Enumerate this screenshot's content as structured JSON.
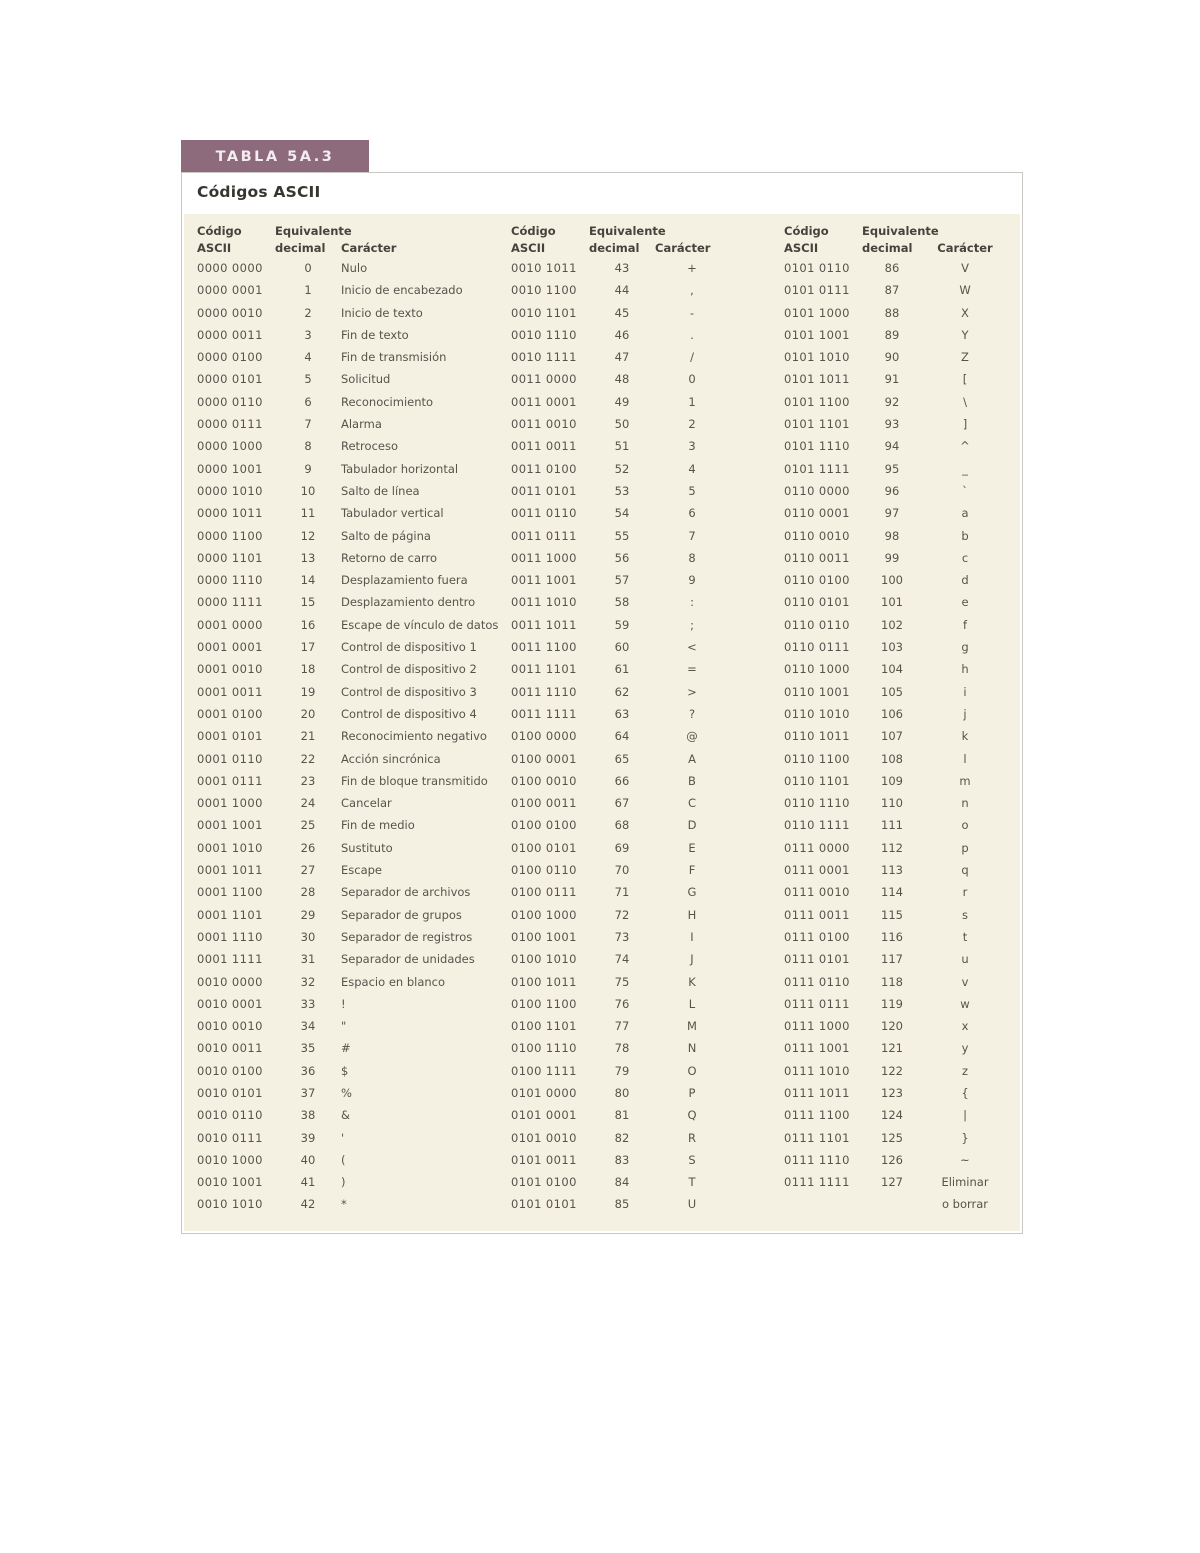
{
  "tab": {
    "label": "TABLA 5A.3"
  },
  "title": "Códigos ASCII",
  "colors": {
    "tab_bg": "#8d6a7c",
    "tab_text": "#f3edf0",
    "table_bg": "#f5f1e2",
    "panel_border": "#c9c7c2",
    "text": "#56534c"
  },
  "columns": {
    "code_line1": "Código",
    "code_line2": "ASCII",
    "dec_line1": "Equivalente",
    "dec_line2": "decimal",
    "char_label": "Carácter"
  },
  "groups": [
    {
      "rows": [
        [
          "0000 0000",
          "0",
          "Nulo"
        ],
        [
          "0000 0001",
          "1",
          "Inicio de encabezado"
        ],
        [
          "0000 0010",
          "2",
          "Inicio de texto"
        ],
        [
          "0000 0011",
          "3",
          "Fin de texto"
        ],
        [
          "0000 0100",
          "4",
          "Fin de transmisión"
        ],
        [
          "0000 0101",
          "5",
          "Solicitud"
        ],
        [
          "0000 0110",
          "6",
          "Reconocimiento"
        ],
        [
          "0000 0111",
          "7",
          "Alarma"
        ],
        [
          "0000 1000",
          "8",
          "Retroceso"
        ],
        [
          "0000 1001",
          "9",
          "Tabulador horizontal"
        ],
        [
          "0000 1010",
          "10",
          "Salto de línea"
        ],
        [
          "0000 1011",
          "11",
          "Tabulador vertical"
        ],
        [
          "0000 1100",
          "12",
          "Salto de página"
        ],
        [
          "0000 1101",
          "13",
          "Retorno de carro"
        ],
        [
          "0000 1110",
          "14",
          "Desplazamiento fuera"
        ],
        [
          "0000 1111",
          "15",
          "Desplazamiento dentro"
        ],
        [
          "0001 0000",
          "16",
          "Escape de vínculo de datos"
        ],
        [
          "0001 0001",
          "17",
          "Control de dispositivo 1"
        ],
        [
          "0001 0010",
          "18",
          "Control de dispositivo 2"
        ],
        [
          "0001 0011",
          "19",
          "Control de dispositivo 3"
        ],
        [
          "0001 0100",
          "20",
          "Control de dispositivo 4"
        ],
        [
          "0001 0101",
          "21",
          "Reconocimiento negativo"
        ],
        [
          "0001 0110",
          "22",
          "Acción sincrónica"
        ],
        [
          "0001 0111",
          "23",
          "Fin de bloque transmitido"
        ],
        [
          "0001 1000",
          "24",
          "Cancelar"
        ],
        [
          "0001 1001",
          "25",
          "Fin de medio"
        ],
        [
          "0001 1010",
          "26",
          "Sustituto"
        ],
        [
          "0001 1011",
          "27",
          "Escape"
        ],
        [
          "0001 1100",
          "28",
          "Separador de archivos"
        ],
        [
          "0001 1101",
          "29",
          "Separador de grupos"
        ],
        [
          "0001 1110",
          "30",
          "Separador de registros"
        ],
        [
          "0001 1111",
          "31",
          "Separador de unidades"
        ],
        [
          "0010 0000",
          "32",
          "Espacio en blanco"
        ],
        [
          "0010 0001",
          "33",
          "!"
        ],
        [
          "0010 0010",
          "34",
          "\""
        ],
        [
          "0010 0011",
          "35",
          "#"
        ],
        [
          "0010 0100",
          "36",
          "$"
        ],
        [
          "0010 0101",
          "37",
          "%"
        ],
        [
          "0010 0110",
          "38",
          "&"
        ],
        [
          "0010 0111",
          "39",
          "'"
        ],
        [
          "0010 1000",
          "40",
          "("
        ],
        [
          "0010 1001",
          "41",
          ")"
        ],
        [
          "0010 1010",
          "42",
          "*"
        ]
      ]
    },
    {
      "rows": [
        [
          "0010 1011",
          "43",
          "+"
        ],
        [
          "0010 1100",
          "44",
          ","
        ],
        [
          "0010 1101",
          "45",
          "-"
        ],
        [
          "0010 1110",
          "46",
          "."
        ],
        [
          "0010 1111",
          "47",
          "/"
        ],
        [
          "0011 0000",
          "48",
          "0"
        ],
        [
          "0011 0001",
          "49",
          "1"
        ],
        [
          "0011 0010",
          "50",
          "2"
        ],
        [
          "0011 0011",
          "51",
          "3"
        ],
        [
          "0011 0100",
          "52",
          "4"
        ],
        [
          "0011 0101",
          "53",
          "5"
        ],
        [
          "0011 0110",
          "54",
          "6"
        ],
        [
          "0011 0111",
          "55",
          "7"
        ],
        [
          "0011 1000",
          "56",
          "8"
        ],
        [
          "0011 1001",
          "57",
          "9"
        ],
        [
          "0011 1010",
          "58",
          ":"
        ],
        [
          "0011 1011",
          "59",
          ";"
        ],
        [
          "0011 1100",
          "60",
          "<"
        ],
        [
          "0011 1101",
          "61",
          "="
        ],
        [
          "0011 1110",
          "62",
          ">"
        ],
        [
          "0011 1111",
          "63",
          "?"
        ],
        [
          "0100 0000",
          "64",
          "@"
        ],
        [
          "0100 0001",
          "65",
          "A"
        ],
        [
          "0100 0010",
          "66",
          "B"
        ],
        [
          "0100 0011",
          "67",
          "C"
        ],
        [
          "0100 0100",
          "68",
          "D"
        ],
        [
          "0100 0101",
          "69",
          "E"
        ],
        [
          "0100 0110",
          "70",
          "F"
        ],
        [
          "0100 0111",
          "71",
          "G"
        ],
        [
          "0100 1000",
          "72",
          "H"
        ],
        [
          "0100 1001",
          "73",
          "I"
        ],
        [
          "0100 1010",
          "74",
          "J"
        ],
        [
          "0100 1011",
          "75",
          "K"
        ],
        [
          "0100 1100",
          "76",
          "L"
        ],
        [
          "0100 1101",
          "77",
          "M"
        ],
        [
          "0100 1110",
          "78",
          "N"
        ],
        [
          "0100 1111",
          "79",
          "O"
        ],
        [
          "0101 0000",
          "80",
          "P"
        ],
        [
          "0101 0001",
          "81",
          "Q"
        ],
        [
          "0101 0010",
          "82",
          "R"
        ],
        [
          "0101 0011",
          "83",
          "S"
        ],
        [
          "0101 0100",
          "84",
          "T"
        ],
        [
          "0101 0101",
          "85",
          "U"
        ]
      ]
    },
    {
      "rows": [
        [
          "0101 0110",
          "86",
          "V"
        ],
        [
          "0101 0111",
          "87",
          "W"
        ],
        [
          "0101 1000",
          "88",
          "X"
        ],
        [
          "0101 1001",
          "89",
          "Y"
        ],
        [
          "0101 1010",
          "90",
          "Z"
        ],
        [
          "0101 1011",
          "91",
          "["
        ],
        [
          "0101 1100",
          "92",
          "\\"
        ],
        [
          "0101 1101",
          "93",
          "]"
        ],
        [
          "0101 1110",
          "94",
          "^"
        ],
        [
          "0101 1111",
          "95",
          "_"
        ],
        [
          "0110 0000",
          "96",
          "`"
        ],
        [
          "0110 0001",
          "97",
          "a"
        ],
        [
          "0110 0010",
          "98",
          "b"
        ],
        [
          "0110 0011",
          "99",
          "c"
        ],
        [
          "0110 0100",
          "100",
          "d"
        ],
        [
          "0110 0101",
          "101",
          "e"
        ],
        [
          "0110 0110",
          "102",
          "f"
        ],
        [
          "0110 0111",
          "103",
          "g"
        ],
        [
          "0110 1000",
          "104",
          "h"
        ],
        [
          "0110 1001",
          "105",
          "i"
        ],
        [
          "0110 1010",
          "106",
          "j"
        ],
        [
          "0110 1011",
          "107",
          "k"
        ],
        [
          "0110 1100",
          "108",
          "l"
        ],
        [
          "0110 1101",
          "109",
          "m"
        ],
        [
          "0110 1110",
          "110",
          "n"
        ],
        [
          "0110 1111",
          "111",
          "o"
        ],
        [
          "0111 0000",
          "112",
          "p"
        ],
        [
          "0111 0001",
          "113",
          "q"
        ],
        [
          "0111 0010",
          "114",
          "r"
        ],
        [
          "0111 0011",
          "115",
          "s"
        ],
        [
          "0111 0100",
          "116",
          "t"
        ],
        [
          "0111 0101",
          "117",
          "u"
        ],
        [
          "0111 0110",
          "118",
          "v"
        ],
        [
          "0111 0111",
          "119",
          "w"
        ],
        [
          "0111 1000",
          "120",
          "x"
        ],
        [
          "0111 1001",
          "121",
          "y"
        ],
        [
          "0111 1010",
          "122",
          "z"
        ],
        [
          "0111 1011",
          "123",
          "{"
        ],
        [
          "0111 1100",
          "124",
          "|"
        ],
        [
          "0111 1101",
          "125",
          "}"
        ],
        [
          "0111 1110",
          "126",
          "~"
        ],
        [
          "0111 1111",
          "127",
          "Eliminar"
        ],
        [
          "",
          "",
          "o borrar"
        ]
      ]
    }
  ]
}
